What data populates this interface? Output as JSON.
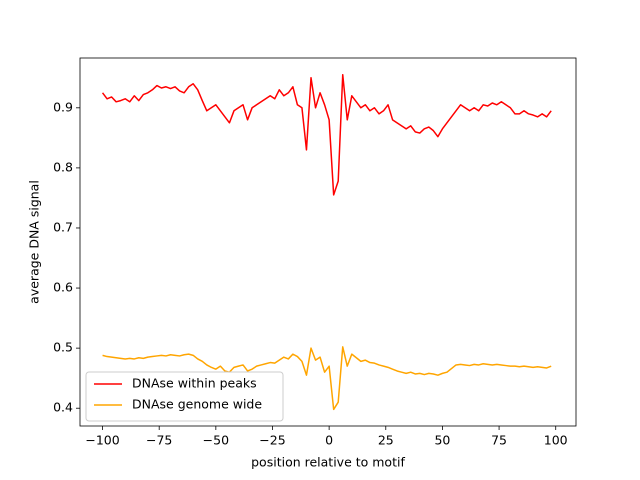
{
  "chart_data": {
    "type": "line",
    "xlabel": "position relative to motif",
    "ylabel": "average DNA signal",
    "x": [
      -100,
      -98,
      -96,
      -94,
      -92,
      -90,
      -88,
      -86,
      -84,
      -82,
      -80,
      -78,
      -76,
      -74,
      -72,
      -70,
      -68,
      -66,
      -64,
      -62,
      -60,
      -58,
      -56,
      -54,
      -52,
      -50,
      -48,
      -46,
      -44,
      -42,
      -40,
      -38,
      -36,
      -34,
      -32,
      -30,
      -28,
      -26,
      -24,
      -22,
      -20,
      -18,
      -16,
      -14,
      -12,
      -10,
      -8,
      -6,
      -4,
      -2,
      0,
      2,
      4,
      6,
      8,
      10,
      12,
      14,
      16,
      18,
      20,
      22,
      24,
      26,
      28,
      30,
      32,
      34,
      36,
      38,
      40,
      42,
      44,
      46,
      48,
      50,
      52,
      54,
      56,
      58,
      60,
      62,
      64,
      66,
      68,
      70,
      72,
      74,
      76,
      78,
      80,
      82,
      84,
      86,
      88,
      90,
      92,
      94,
      96,
      98
    ],
    "series": [
      {
        "name": "DNAse within peaks",
        "color": "#ff0000",
        "values": [
          0.925,
          0.915,
          0.918,
          0.91,
          0.912,
          0.915,
          0.91,
          0.92,
          0.912,
          0.922,
          0.925,
          0.93,
          0.937,
          0.933,
          0.935,
          0.932,
          0.935,
          0.928,
          0.925,
          0.935,
          0.94,
          0.93,
          0.912,
          0.895,
          0.9,
          0.905,
          0.895,
          0.885,
          0.875,
          0.895,
          0.9,
          0.905,
          0.88,
          0.9,
          0.905,
          0.91,
          0.915,
          0.92,
          0.915,
          0.93,
          0.92,
          0.925,
          0.935,
          0.905,
          0.9,
          0.83,
          0.95,
          0.9,
          0.925,
          0.905,
          0.88,
          0.755,
          0.778,
          0.955,
          0.88,
          0.92,
          0.91,
          0.9,
          0.905,
          0.895,
          0.9,
          0.89,
          0.895,
          0.905,
          0.88,
          0.875,
          0.87,
          0.865,
          0.87,
          0.86,
          0.858,
          0.865,
          0.868,
          0.862,
          0.852,
          0.865,
          0.875,
          0.885,
          0.895,
          0.905,
          0.9,
          0.895,
          0.9,
          0.895,
          0.905,
          0.903,
          0.908,
          0.905,
          0.91,
          0.905,
          0.9,
          0.89,
          0.89,
          0.895,
          0.89,
          0.888,
          0.885,
          0.89,
          0.885,
          0.895
        ]
      },
      {
        "name": "DNAse genome wide",
        "color": "#ffa500",
        "values": [
          0.488,
          0.486,
          0.485,
          0.484,
          0.483,
          0.482,
          0.483,
          0.482,
          0.484,
          0.483,
          0.485,
          0.486,
          0.487,
          0.488,
          0.487,
          0.489,
          0.488,
          0.487,
          0.489,
          0.49,
          0.488,
          0.482,
          0.478,
          0.472,
          0.468,
          0.465,
          0.47,
          0.462,
          0.46,
          0.468,
          0.47,
          0.472,
          0.462,
          0.465,
          0.47,
          0.472,
          0.474,
          0.476,
          0.475,
          0.48,
          0.485,
          0.482,
          0.49,
          0.486,
          0.478,
          0.455,
          0.5,
          0.48,
          0.485,
          0.46,
          0.47,
          0.398,
          0.41,
          0.502,
          0.47,
          0.49,
          0.484,
          0.478,
          0.48,
          0.476,
          0.475,
          0.472,
          0.47,
          0.468,
          0.465,
          0.462,
          0.46,
          0.458,
          0.46,
          0.457,
          0.458,
          0.456,
          0.458,
          0.457,
          0.455,
          0.458,
          0.46,
          0.466,
          0.472,
          0.473,
          0.472,
          0.471,
          0.473,
          0.472,
          0.474,
          0.473,
          0.472,
          0.473,
          0.472,
          0.471,
          0.47,
          0.47,
          0.469,
          0.47,
          0.469,
          0.468,
          0.469,
          0.468,
          0.467,
          0.47
        ]
      }
    ],
    "xlim": [
      -109.95,
      108.95
    ],
    "xticks": [
      {
        "value": -100,
        "label": "−100"
      },
      {
        "value": -75,
        "label": "−75"
      },
      {
        "value": -50,
        "label": "−50"
      },
      {
        "value": -25,
        "label": "−25"
      },
      0,
      25,
      50,
      75,
      100
    ],
    "ylim": [
      0.3704,
      0.9829
    ],
    "yticks": [
      0.4,
      0.5,
      0.6,
      0.7,
      0.8,
      0.9
    ],
    "legend": "lower left"
  }
}
